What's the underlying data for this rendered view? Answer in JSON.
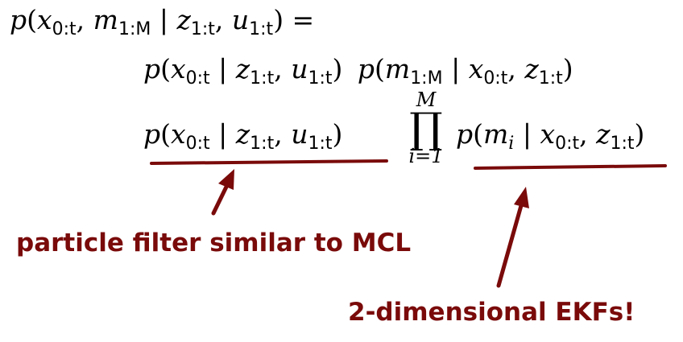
{
  "equation": {
    "line1": {
      "p": "p",
      "open": "(",
      "x": "x",
      "x_sub": "0:t",
      "comma1": ", ",
      "m": "m",
      "m_sub": "1:M",
      "bar": " | ",
      "z": "z",
      "z_sub": "1:t",
      "comma2": ", ",
      "u": "u",
      "u_sub": "1:t",
      "close": ")",
      "eq": " ="
    },
    "line2": {
      "term_a": {
        "p": "p",
        "open": "(",
        "x": "x",
        "x_sub": "0:t",
        "bar": " | ",
        "z": "z",
        "z_sub": "1:t",
        "comma": ", ",
        "u": "u",
        "u_sub": "1:t",
        "close": ")"
      },
      "term_b": {
        "p": "p",
        "open": "(",
        "m": "m",
        "m_sub": "1:M",
        "bar": " | ",
        "x": "x",
        "x_sub": "0:t",
        "comma": ", ",
        "z": "z",
        "z_sub": "1:t",
        "close": ")"
      }
    },
    "line3": {
      "term_a": {
        "p": "p",
        "open": "(",
        "x": "x",
        "x_sub": "0:t",
        "bar": " | ",
        "z": "z",
        "z_sub": "1:t",
        "comma": ", ",
        "u": "u",
        "u_sub": "1:t",
        "close": ")"
      },
      "product": {
        "symbol": "∏",
        "upper": "M",
        "lower": "i=1"
      },
      "term_b": {
        "p": "p",
        "open": "(",
        "m": "m",
        "m_sub": "i",
        "bar": " | ",
        "x": "x",
        "x_sub": "0:t",
        "comma": ", ",
        "z": "z",
        "z_sub": "1:t",
        "close": ")"
      }
    }
  },
  "annotations": {
    "left": "particle filter similar to MCL",
    "right": "2-dimensional EKFs!"
  },
  "colors": {
    "annotation": "#7a0a0a",
    "text": "#000000"
  }
}
